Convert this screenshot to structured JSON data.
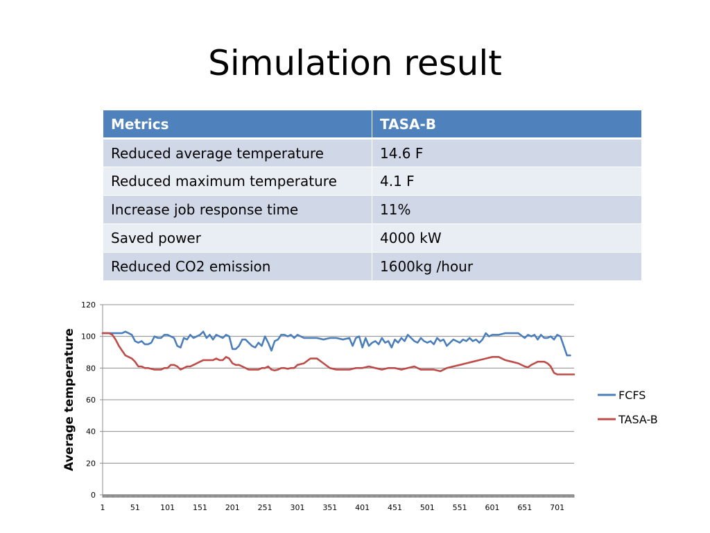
{
  "slide": {
    "title": "Simulation result"
  },
  "table": {
    "headers": [
      "Metrics",
      "TASA-B"
    ],
    "rows": [
      [
        "Reduced average temperature",
        "14.6 F"
      ],
      [
        "Reduced maximum temperature",
        "4.1 F"
      ],
      [
        "Increase job response time",
        "11%"
      ],
      [
        "Saved power",
        "4000 kW"
      ],
      [
        "Reduced CO2 emission",
        "1600kg /hour"
      ]
    ]
  },
  "colors": {
    "fcfs": "#4a7ebb",
    "tasab": "#be4b48",
    "header": "#4f81bd"
  },
  "chart_data": {
    "type": "line",
    "title": "",
    "xlabel": "",
    "ylabel": "Average temperature",
    "ylim": [
      0,
      120
    ],
    "xlim": [
      1,
      727
    ],
    "yticks": [
      0,
      20,
      40,
      60,
      80,
      100,
      120
    ],
    "xticks": [
      1,
      51,
      101,
      151,
      201,
      251,
      301,
      351,
      401,
      451,
      501,
      551,
      601,
      651,
      701
    ],
    "grid": true,
    "legend": "right",
    "series": [
      {
        "name": "FCFS",
        "color": "#4a7ebb",
        "x": [
          1,
          11,
          21,
          31,
          36,
          41,
          46,
          51,
          56,
          61,
          66,
          71,
          76,
          81,
          86,
          91,
          96,
          101,
          106,
          111,
          116,
          121,
          126,
          131,
          136,
          141,
          146,
          151,
          156,
          161,
          166,
          171,
          176,
          181,
          186,
          191,
          196,
          201,
          206,
          211,
          216,
          221,
          226,
          231,
          236,
          241,
          246,
          251,
          256,
          261,
          266,
          271,
          276,
          281,
          286,
          291,
          296,
          301,
          311,
          321,
          331,
          341,
          351,
          361,
          371,
          381,
          386,
          391,
          396,
          401,
          406,
          411,
          416,
          421,
          426,
          431,
          436,
          441,
          446,
          451,
          456,
          461,
          466,
          471,
          476,
          481,
          486,
          491,
          496,
          501,
          506,
          511,
          516,
          521,
          526,
          531,
          536,
          541,
          546,
          551,
          556,
          561,
          566,
          571,
          576,
          581,
          586,
          591,
          596,
          601,
          611,
          621,
          631,
          641,
          651,
          656,
          661,
          666,
          671,
          676,
          681,
          686,
          691,
          696,
          701,
          706,
          711,
          716,
          721
        ],
        "values": [
          102,
          102,
          102,
          102,
          103,
          102,
          101,
          97,
          96,
          97,
          95,
          95,
          96,
          100,
          99,
          99,
          101,
          101,
          100,
          99,
          94,
          93,
          99,
          98,
          101,
          99,
          100,
          101,
          103,
          99,
          101,
          98,
          101,
          100,
          99,
          101,
          100,
          92,
          92,
          94,
          98,
          98,
          96,
          94,
          93,
          96,
          94,
          100,
          96,
          91,
          97,
          98,
          101,
          101,
          100,
          101,
          99,
          101,
          99,
          99,
          99,
          98,
          99,
          99,
          98,
          99,
          94,
          99,
          100,
          93,
          99,
          94,
          96,
          97,
          95,
          99,
          96,
          97,
          93,
          98,
          96,
          99,
          97,
          101,
          99,
          97,
          96,
          99,
          97,
          96,
          97,
          95,
          99,
          97,
          98,
          94,
          96,
          98,
          97,
          96,
          98,
          97,
          99,
          97,
          98,
          96,
          98,
          102,
          100,
          101,
          101,
          102,
          102,
          102,
          99,
          101,
          100,
          101,
          98,
          101,
          99,
          99,
          100,
          98,
          101,
          100,
          94,
          88,
          88
        ]
      },
      {
        "name": "TASA-B",
        "color": "#be4b48",
        "x": [
          1,
          11,
          16,
          21,
          26,
          31,
          36,
          41,
          46,
          51,
          56,
          61,
          66,
          71,
          76,
          81,
          86,
          91,
          96,
          101,
          106,
          111,
          116,
          121,
          126,
          131,
          136,
          141,
          146,
          151,
          156,
          161,
          166,
          171,
          176,
          181,
          186,
          191,
          196,
          201,
          206,
          211,
          216,
          221,
          226,
          231,
          236,
          241,
          246,
          251,
          256,
          261,
          266,
          271,
          276,
          281,
          286,
          291,
          296,
          301,
          311,
          321,
          331,
          341,
          351,
          361,
          371,
          381,
          391,
          401,
          411,
          421,
          431,
          441,
          451,
          461,
          471,
          481,
          491,
          501,
          511,
          521,
          531,
          541,
          551,
          561,
          571,
          581,
          591,
          601,
          611,
          621,
          631,
          641,
          651,
          656,
          661,
          666,
          671,
          676,
          681,
          686,
          691,
          696,
          701,
          706,
          711,
          716,
          721,
          727
        ],
        "values": [
          102,
          102,
          101,
          98,
          94,
          91,
          88,
          87,
          86,
          84,
          81,
          81,
          80,
          80,
          79.5,
          79,
          79,
          79,
          80,
          80,
          82,
          82,
          81,
          79,
          80,
          81,
          81,
          82,
          83,
          84,
          85,
          85,
          85,
          85,
          86,
          85,
          85,
          87,
          86,
          83,
          82,
          82,
          81,
          80,
          79,
          79,
          79,
          79,
          80,
          80,
          81,
          79,
          78.5,
          79,
          80,
          80,
          79.5,
          80,
          80,
          82,
          83,
          86,
          86,
          83,
          80,
          79,
          79,
          79,
          80,
          80,
          81,
          80,
          79,
          80,
          80,
          79,
          80,
          81,
          79,
          79,
          79,
          78,
          80,
          81,
          82,
          83,
          84,
          85,
          86,
          87,
          87,
          85,
          84,
          83,
          81,
          80.5,
          82,
          83,
          84,
          84,
          84,
          83,
          81,
          77,
          76,
          76,
          76,
          76,
          76,
          76
        ]
      }
    ]
  }
}
